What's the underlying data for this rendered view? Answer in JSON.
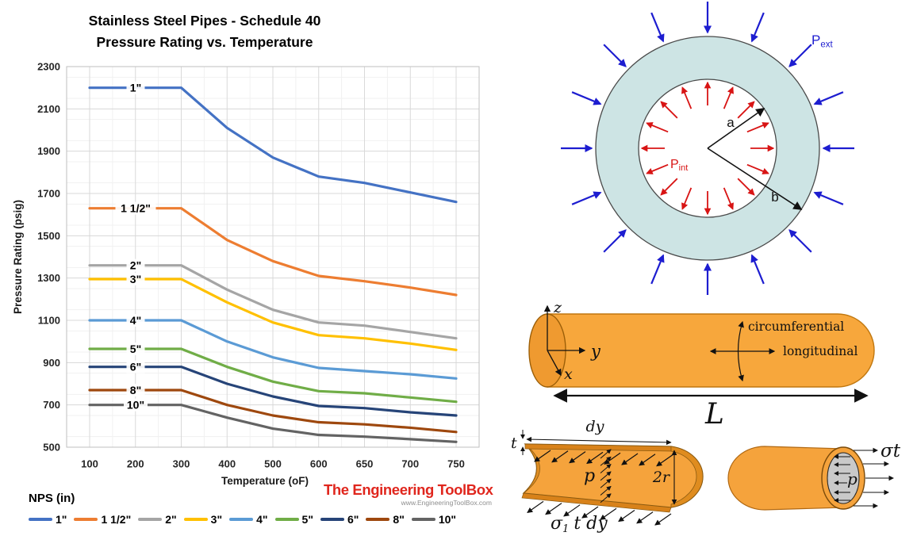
{
  "branding": {
    "name": "The Engineering ToolBox",
    "website": "www.EngineeringToolBox.com",
    "logo_color": "#e0261d"
  },
  "chart_data": {
    "type": "line",
    "title_lines": [
      "Stainless Steel Pipes - Schedule 40",
      "Pressure Rating vs. Temperature"
    ],
    "xlabel": "Temperature (oF)",
    "ylabel": "Pressure Rating (psig)",
    "legend_title": "NPS (in)",
    "legend_position": "bottom",
    "grid": true,
    "ylim": [
      500,
      2300
    ],
    "ytick_step": 200,
    "ytick_minor_step": 50,
    "categories": [
      100,
      200,
      300,
      400,
      500,
      600,
      650,
      700,
      750
    ],
    "series": [
      {
        "name": "1\"",
        "color": "#4472C4",
        "values": [
          2200,
          2200,
          2200,
          2010,
          1870,
          1780,
          1750,
          1705,
          1660
        ]
      },
      {
        "name": "1 1/2\"",
        "color": "#ED7D31",
        "values": [
          1630,
          1630,
          1630,
          1480,
          1380,
          1310,
          1285,
          1255,
          1220
        ]
      },
      {
        "name": "2\"",
        "color": "#A5A5A5",
        "values": [
          1360,
          1360,
          1360,
          1245,
          1150,
          1090,
          1075,
          1045,
          1015
        ]
      },
      {
        "name": "3\"",
        "color": "#FFC000",
        "values": [
          1295,
          1295,
          1295,
          1185,
          1090,
          1030,
          1015,
          990,
          960
        ]
      },
      {
        "name": "4\"",
        "color": "#5B9BD5",
        "values": [
          1100,
          1100,
          1100,
          1000,
          925,
          875,
          860,
          845,
          825
        ]
      },
      {
        "name": "5\"",
        "color": "#70AD47",
        "values": [
          965,
          965,
          965,
          880,
          810,
          765,
          755,
          735,
          715
        ]
      },
      {
        "name": "6\"",
        "color": "#264478",
        "values": [
          880,
          880,
          880,
          800,
          740,
          695,
          685,
          665,
          650
        ]
      },
      {
        "name": "8\"",
        "color": "#9E480E",
        "values": [
          770,
          770,
          770,
          700,
          650,
          618,
          608,
          592,
          572
        ]
      },
      {
        "name": "10\"",
        "color": "#636363",
        "values": [
          700,
          700,
          700,
          640,
          588,
          558,
          550,
          538,
          525
        ]
      }
    ]
  },
  "annulus_diagram": {
    "external_pressure_main": "P",
    "external_pressure_sub": "ext",
    "internal_pressure_main": "P",
    "internal_pressure_sub": "int",
    "inner_radius_label": "a",
    "outer_radius_label": "b",
    "ring_color": "#cde4e4",
    "external_arrow_color": "#1d1dd0",
    "internal_arrow_color": "#d81414"
  },
  "cylinder_diagram": {
    "axis_z": "z",
    "axis_y": "y",
    "axis_x": "x",
    "circumferential_label": "circumferential",
    "longitudinal_label": "longitudinal",
    "length_label": "L",
    "body_color": "#F7A73C"
  },
  "half_pipe_diagram": {
    "thickness_label": "t",
    "width_label": "dy",
    "pressure_label": "p",
    "diameter_label": "2r",
    "stress_sigma": "σ",
    "stress_sigma_sub": "1",
    "stress_rest": "t dy"
  },
  "end_view_diagram": {
    "pressure_label": "p",
    "stress_label": "σt"
  }
}
